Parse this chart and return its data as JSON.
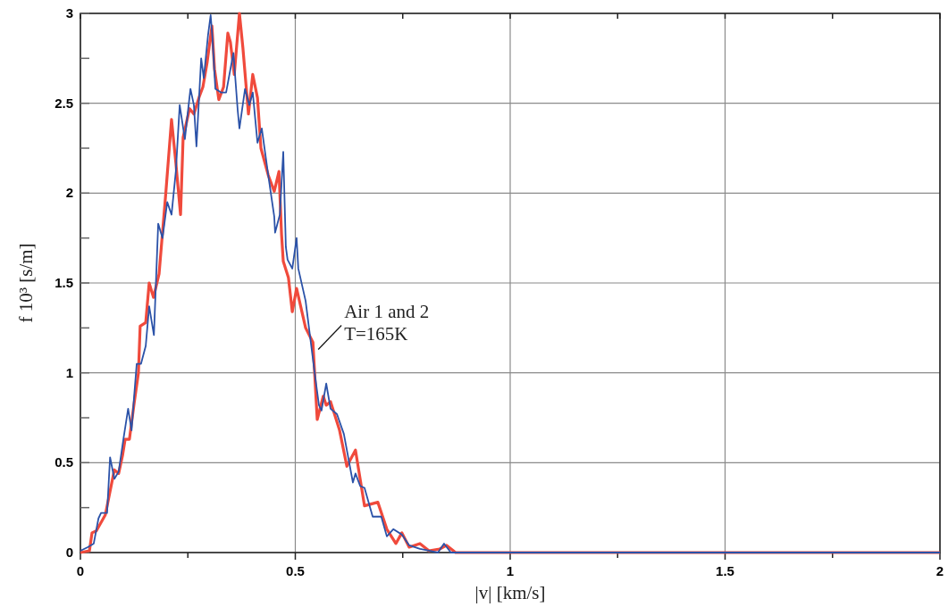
{
  "chart_data": {
    "type": "line",
    "xlabel": "|v| [km/s]",
    "ylabel": "f 10³  [s/m]",
    "xlim": [
      0,
      2
    ],
    "ylim": [
      0,
      3
    ],
    "xticks": [
      0,
      {
        "value": 0.25,
        "label": null
      },
      0.5,
      {
        "value": 0.75,
        "label": null
      },
      1,
      {
        "value": 1.25,
        "label": null
      },
      1.5,
      {
        "value": 1.75,
        "label": null
      },
      2
    ],
    "yticks": [
      0,
      {
        "value": 0.25,
        "label": null
      },
      0.5,
      {
        "value": 0.75,
        "label": null
      },
      1,
      {
        "value": 1.25,
        "label": null
      },
      1.5,
      {
        "value": 1.75,
        "label": null
      },
      2,
      {
        "value": 2.25,
        "label": null
      },
      2.5,
      {
        "value": 2.75,
        "label": null
      },
      3
    ],
    "grid": true,
    "marker": "none",
    "line_style": "solid",
    "annotations": [
      {
        "text": "Air 1 and 2\nT=165K",
        "x": 0.545,
        "y": 1.1
      }
    ],
    "series": [
      {
        "color": "#f04a3c",
        "x": [
          0,
          0.021,
          0.027,
          0.037,
          0.058,
          0.079,
          0.089,
          0.098,
          0.104,
          0.114,
          0.125,
          0.135,
          0.139,
          0.152,
          0.16,
          0.17,
          0.183,
          0.198,
          0.212,
          0.222,
          0.233,
          0.239,
          0.254,
          0.264,
          0.277,
          0.285,
          0.295,
          0.306,
          0.312,
          0.322,
          0.333,
          0.343,
          0.349,
          0.358,
          0.37,
          0.378,
          0.391,
          0.401,
          0.412,
          0.42,
          0.437,
          0.451,
          0.462,
          0.468,
          0.472,
          0.484,
          0.493,
          0.503,
          0.524,
          0.541,
          0.551,
          0.565,
          0.572,
          0.582,
          0.603,
          0.62,
          0.64,
          0.661,
          0.692,
          0.713,
          0.734,
          0.748,
          0.765,
          0.79,
          0.811,
          0.836,
          0.852,
          0.873,
          2
        ],
        "values": [
          0,
          0.01,
          0.11,
          0.12,
          0.21,
          0.46,
          0.44,
          0.54,
          0.63,
          0.63,
          0.83,
          1.0,
          1.26,
          1.28,
          1.5,
          1.42,
          1.55,
          1.98,
          2.41,
          2.17,
          1.88,
          2.31,
          2.47,
          2.44,
          2.54,
          2.59,
          2.73,
          2.93,
          2.69,
          2.52,
          2.59,
          2.89,
          2.84,
          2.66,
          3.0,
          2.81,
          2.44,
          2.66,
          2.53,
          2.25,
          2.1,
          2.01,
          2.12,
          1.77,
          1.62,
          1.53,
          1.34,
          1.47,
          1.25,
          1.17,
          0.74,
          0.87,
          0.82,
          0.84,
          0.68,
          0.48,
          0.57,
          0.26,
          0.28,
          0.13,
          0.05,
          0.11,
          0.03,
          0.05,
          0.01,
          0.02,
          0.04,
          0,
          0
        ]
      },
      {
        "color": "#2b52a8",
        "x": [
          0,
          0.017,
          0.031,
          0.042,
          0.048,
          0.062,
          0.069,
          0.079,
          0.089,
          0.1,
          0.111,
          0.119,
          0.125,
          0.131,
          0.141,
          0.152,
          0.16,
          0.171,
          0.177,
          0.181,
          0.191,
          0.202,
          0.212,
          0.222,
          0.231,
          0.243,
          0.256,
          0.264,
          0.27,
          0.281,
          0.287,
          0.297,
          0.303,
          0.307,
          0.314,
          0.327,
          0.339,
          0.356,
          0.366,
          0.37,
          0.383,
          0.393,
          0.401,
          0.412,
          0.422,
          0.437,
          0.451,
          0.453,
          0.464,
          0.472,
          0.478,
          0.482,
          0.493,
          0.503,
          0.507,
          0.524,
          0.545,
          0.555,
          0.561,
          0.572,
          0.582,
          0.597,
          0.613,
          0.634,
          0.64,
          0.651,
          0.661,
          0.68,
          0.7,
          0.713,
          0.728,
          0.748,
          0.765,
          0.79,
          0.811,
          0.832,
          0.846,
          0.862,
          0.936,
          2
        ],
        "values": [
          0.01,
          0.03,
          0.05,
          0.19,
          0.22,
          0.22,
          0.53,
          0.41,
          0.45,
          0.63,
          0.8,
          0.68,
          0.87,
          1.05,
          1.05,
          1.15,
          1.37,
          1.21,
          1.58,
          1.83,
          1.75,
          1.95,
          1.88,
          2.12,
          2.49,
          2.3,
          2.58,
          2.49,
          2.26,
          2.75,
          2.64,
          2.88,
          2.99,
          2.87,
          2.58,
          2.56,
          2.56,
          2.78,
          2.46,
          2.36,
          2.58,
          2.49,
          2.56,
          2.28,
          2.36,
          2.1,
          1.87,
          1.78,
          1.88,
          2.23,
          1.7,
          1.63,
          1.58,
          1.75,
          1.58,
          1.4,
          1.0,
          0.82,
          0.79,
          0.94,
          0.8,
          0.77,
          0.66,
          0.39,
          0.44,
          0.37,
          0.36,
          0.2,
          0.2,
          0.09,
          0.13,
          0.1,
          0.04,
          0.02,
          0.01,
          0,
          0.05,
          0,
          0,
          0
        ]
      }
    ]
  }
}
